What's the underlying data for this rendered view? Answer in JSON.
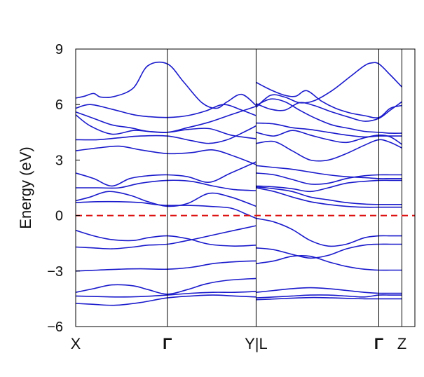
{
  "chart_data": {
    "type": "line",
    "title": "",
    "ylabel": "Energy (eV)",
    "xlabel": "",
    "ylim": [
      -6,
      9
    ],
    "xlim": [
      0,
      4.7
    ],
    "yticks": [
      -6,
      -3,
      0,
      3,
      6,
      9
    ],
    "ytick_labels": [
      "−6",
      "−3",
      "0",
      "3",
      "6",
      "9"
    ],
    "high_symmetry_points": [
      {
        "label": "X",
        "x": 0,
        "bold": false
      },
      {
        "label": "Γ",
        "x": 1.27,
        "bold": true
      },
      {
        "label": "Y|L",
        "x": 2.5,
        "bold": false
      },
      {
        "label": "Γ",
        "x": 4.2,
        "bold": true
      },
      {
        "label": "Z",
        "x": 4.52,
        "bold": false
      }
    ],
    "fermi_level": 0,
    "grid": false,
    "band_color": "#1a1acc",
    "fermi_color": "#dd1111",
    "series": [
      {
        "x": [
          0,
          0.25,
          0.55,
          0.9,
          1.27,
          1.6,
          1.9,
          2.2,
          2.5
        ],
        "values": [
          -4.75,
          -4.8,
          -4.85,
          -4.7,
          -4.45,
          -4.35,
          -4.3,
          -4.35,
          -4.4
        ]
      },
      {
        "x": [
          0,
          0.3,
          0.6,
          0.9,
          1.27,
          1.6,
          1.9,
          2.2,
          2.5
        ],
        "values": [
          -4.35,
          -4.38,
          -4.4,
          -4.38,
          -4.3,
          -4.2,
          -4.15,
          -4.15,
          -4.1
        ]
      },
      {
        "x": [
          0,
          0.25,
          0.5,
          0.8,
          1.0,
          1.27,
          1.55,
          1.8,
          2.1,
          2.5
        ],
        "values": [
          -4.15,
          -3.95,
          -3.75,
          -3.8,
          -4.0,
          -4.25,
          -4.0,
          -3.7,
          -3.5,
          -3.4
        ]
      },
      {
        "x": [
          0,
          0.3,
          0.6,
          0.9,
          1.27,
          1.6,
          1.9,
          2.2,
          2.5
        ],
        "values": [
          -3.0,
          -2.95,
          -2.9,
          -2.88,
          -2.9,
          -2.8,
          -2.6,
          -2.5,
          -2.45
        ]
      },
      {
        "x": [
          0,
          0.25,
          0.5,
          0.8,
          1.0,
          1.27,
          1.55,
          1.85,
          2.2,
          2.5
        ],
        "values": [
          -1.7,
          -1.75,
          -1.8,
          -1.7,
          -1.6,
          -1.55,
          -1.35,
          -1.1,
          -0.8,
          -0.55
        ]
      },
      {
        "x": [
          0,
          0.25,
          0.5,
          0.8,
          1.0,
          1.27,
          1.55,
          1.85,
          2.2,
          2.5
        ],
        "values": [
          -0.8,
          -1.1,
          -1.3,
          -1.35,
          -1.2,
          -1.1,
          -1.25,
          -1.55,
          -1.65,
          -1.6
        ]
      },
      {
        "x": [
          0,
          0.3,
          0.6,
          0.9,
          1.1,
          1.27,
          1.55,
          1.85,
          2.15,
          2.35,
          2.5
        ],
        "values": [
          0.7,
          0.75,
          0.75,
          0.7,
          0.6,
          0.55,
          0.55,
          0.5,
          0.4,
          0.1,
          -0.15
        ]
      },
      {
        "x": [
          0,
          0.2,
          0.45,
          0.75,
          1.0,
          1.27,
          1.55,
          1.85,
          2.15,
          2.5
        ],
        "values": [
          0.8,
          1.0,
          1.3,
          1.1,
          0.75,
          0.5,
          0.65,
          1.2,
          1.0,
          0.5
        ]
      },
      {
        "x": [
          0,
          0.3,
          0.6,
          0.9,
          1.27,
          1.6,
          1.9,
          2.2,
          2.5
        ],
        "values": [
          1.5,
          1.5,
          1.5,
          1.75,
          1.9,
          1.85,
          1.6,
          1.4,
          1.35
        ]
      },
      {
        "x": [
          0,
          0.25,
          0.5,
          0.75,
          1.0,
          1.27,
          1.55,
          1.85,
          2.15,
          2.5
        ],
        "values": [
          2.3,
          2.0,
          1.6,
          2.0,
          2.15,
          2.2,
          2.1,
          1.8,
          2.3,
          2.9
        ]
      },
      {
        "x": [
          0,
          0.3,
          0.6,
          0.9,
          1.27,
          1.6,
          1.9,
          2.2,
          2.5
        ],
        "values": [
          3.5,
          3.65,
          3.75,
          3.55,
          3.35,
          3.4,
          3.55,
          3.2,
          2.75
        ]
      },
      {
        "x": [
          0,
          0.3,
          0.6,
          0.9,
          1.27,
          1.6,
          1.85,
          2.1,
          2.35,
          2.5
        ],
        "values": [
          4.1,
          4.1,
          4.2,
          4.3,
          4.3,
          4.05,
          3.9,
          4.1,
          4.55,
          4.85
        ]
      },
      {
        "x": [
          0,
          0.2,
          0.5,
          0.8,
          1.0,
          1.27,
          1.55,
          1.85,
          2.15,
          2.5
        ],
        "values": [
          5.45,
          4.85,
          4.4,
          4.6,
          4.55,
          4.5,
          4.65,
          4.7,
          4.35,
          4.15
        ]
      },
      {
        "x": [
          0,
          0.25,
          0.5,
          0.75,
          1.0,
          1.27,
          1.55,
          1.85,
          2.15,
          2.5
        ],
        "values": [
          5.6,
          5.25,
          4.9,
          4.75,
          4.55,
          4.5,
          4.75,
          5.05,
          5.45,
          5.9
        ]
      },
      {
        "x": [
          0,
          0.2,
          0.5,
          0.8,
          1.0,
          1.27,
          1.55,
          1.8,
          2.05,
          2.3,
          2.5
        ],
        "values": [
          5.8,
          6.0,
          5.75,
          5.45,
          5.35,
          5.3,
          5.4,
          5.65,
          6.0,
          5.7,
          5.4
        ]
      },
      {
        "x": [
          0,
          0.12,
          0.25,
          0.35,
          0.55,
          0.8,
          1.0,
          1.27,
          1.5,
          1.75,
          1.95,
          2.1,
          2.3,
          2.5
        ],
        "values": [
          6.35,
          6.45,
          6.6,
          6.4,
          6.45,
          6.9,
          8.1,
          8.2,
          7.2,
          6.1,
          5.8,
          6.15,
          6.55,
          5.95
        ]
      },
      {
        "x": [
          2.5,
          2.7,
          2.9,
          3.1,
          3.3,
          3.55,
          3.8,
          4.0,
          4.2,
          4.36,
          4.52
        ],
        "values": [
          -4.55,
          -4.52,
          -4.48,
          -4.45,
          -4.43,
          -4.45,
          -4.48,
          -4.5,
          -4.5,
          -4.5,
          -4.5
        ]
      },
      {
        "x": [
          2.5,
          2.75,
          3.0,
          3.25,
          3.5,
          3.75,
          4.0,
          4.2,
          4.36,
          4.52
        ],
        "values": [
          -4.45,
          -4.4,
          -4.35,
          -4.3,
          -4.3,
          -4.35,
          -4.4,
          -4.3,
          -4.3,
          -4.3
        ]
      },
      {
        "x": [
          2.5,
          2.75,
          3.0,
          3.25,
          3.5,
          3.75,
          4.0,
          4.2,
          4.36,
          4.52
        ],
        "values": [
          -4.15,
          -4.05,
          -3.95,
          -3.9,
          -3.95,
          -4.05,
          -4.15,
          -4.2,
          -4.2,
          -4.2
        ]
      },
      {
        "x": [
          2.5,
          2.75,
          3.0,
          3.25,
          3.5,
          3.75,
          4.0,
          4.2,
          4.36,
          4.52
        ],
        "values": [
          -2.6,
          -2.45,
          -2.2,
          -2.2,
          -2.5,
          -2.75,
          -2.9,
          -2.95,
          -2.95,
          -2.95
        ]
      },
      {
        "x": [
          2.5,
          2.75,
          3.0,
          3.25,
          3.5,
          3.75,
          4.0,
          4.2,
          4.36,
          4.52
        ],
        "values": [
          -1.75,
          -1.85,
          -2.1,
          -2.3,
          -2.15,
          -1.8,
          -1.6,
          -1.55,
          -1.55,
          -1.55
        ]
      },
      {
        "x": [
          2.5,
          2.75,
          3.0,
          3.25,
          3.5,
          3.75,
          4.0,
          4.2,
          4.36,
          4.52
        ],
        "values": [
          -0.15,
          -0.35,
          -0.75,
          -1.35,
          -1.65,
          -1.55,
          -1.2,
          -1.1,
          -1.1,
          -1.1
        ]
      },
      {
        "x": [
          2.5,
          2.75,
          3.0,
          3.25,
          3.5,
          3.75,
          4.0,
          4.2,
          4.36,
          4.52
        ],
        "values": [
          1.5,
          1.3,
          1.0,
          0.75,
          0.6,
          0.5,
          0.45,
          0.45,
          0.45,
          0.45
        ]
      },
      {
        "x": [
          2.5,
          2.75,
          3.0,
          3.25,
          3.5,
          3.75,
          4.0,
          4.2,
          4.36,
          4.52
        ],
        "values": [
          1.55,
          1.45,
          1.3,
          1.0,
          0.85,
          0.7,
          0.62,
          0.6,
          0.6,
          0.6
        ]
      },
      {
        "x": [
          2.5,
          2.75,
          3.0,
          3.25,
          3.5,
          3.75,
          4.0,
          4.2,
          4.36,
          4.52
        ],
        "values": [
          1.6,
          1.55,
          1.45,
          1.3,
          1.5,
          1.75,
          1.85,
          1.9,
          1.9,
          1.9
        ]
      },
      {
        "x": [
          2.5,
          2.75,
          3.0,
          3.25,
          3.5,
          3.75,
          4.0,
          4.2,
          4.36,
          4.52
        ],
        "values": [
          2.3,
          2.2,
          1.95,
          1.7,
          1.75,
          2.0,
          2.15,
          2.2,
          2.2,
          2.2
        ]
      },
      {
        "x": [
          2.5,
          2.75,
          3.0,
          3.25,
          3.5,
          3.75,
          4.0,
          4.2,
          4.36,
          4.52
        ],
        "values": [
          2.7,
          2.6,
          2.5,
          2.35,
          2.2,
          2.1,
          2.05,
          2.0,
          2.0,
          2.0
        ]
      },
      {
        "x": [
          2.5,
          2.75,
          3.0,
          3.25,
          3.5,
          3.75,
          4.0,
          4.2,
          4.36,
          4.52
        ],
        "values": [
          3.9,
          4.0,
          3.5,
          3.0,
          3.0,
          3.35,
          3.8,
          4.1,
          3.95,
          3.65
        ]
      },
      {
        "x": [
          2.5,
          2.75,
          3.0,
          3.25,
          3.5,
          3.75,
          4.0,
          4.2,
          4.36,
          4.52
        ],
        "values": [
          4.5,
          4.3,
          4.6,
          4.35,
          4.1,
          3.95,
          4.2,
          4.35,
          4.25,
          3.85
        ]
      },
      {
        "x": [
          2.5,
          2.75,
          3.0,
          3.25,
          3.5,
          3.75,
          4.0,
          4.2,
          4.36,
          4.52
        ],
        "values": [
          5.0,
          4.95,
          4.75,
          4.65,
          4.5,
          4.35,
          4.25,
          4.3,
          4.3,
          4.3
        ]
      },
      {
        "x": [
          2.5,
          2.7,
          2.9,
          3.1,
          3.3,
          3.55,
          3.8,
          4.0,
          4.2,
          4.36,
          4.52
        ],
        "values": [
          5.95,
          6.3,
          6.15,
          5.7,
          5.3,
          4.9,
          4.7,
          4.55,
          4.5,
          4.45,
          4.45
        ]
      },
      {
        "x": [
          2.5,
          2.7,
          2.9,
          3.1,
          3.3,
          3.55,
          3.8,
          4.0,
          4.2,
          4.36,
          4.52
        ],
        "values": [
          6.05,
          5.75,
          5.7,
          6.1,
          5.95,
          5.6,
          5.3,
          5.1,
          5.25,
          5.7,
          6.15
        ]
      },
      {
        "x": [
          2.5,
          2.7,
          2.9,
          3.05,
          3.2,
          3.4,
          3.6,
          3.8,
          4.0,
          4.2,
          4.36,
          4.52
        ],
        "values": [
          7.2,
          6.8,
          6.5,
          6.45,
          6.75,
          6.2,
          5.8,
          5.55,
          5.4,
          5.3,
          5.8,
          5.95
        ]
      },
      {
        "x": [
          2.5,
          2.7,
          2.9,
          3.1,
          3.3,
          3.55,
          3.8,
          4.0,
          4.1,
          4.2,
          4.36,
          4.52
        ],
        "values": [
          5.85,
          6.5,
          6.4,
          6.1,
          6.2,
          6.75,
          7.5,
          8.1,
          8.25,
          8.2,
          7.6,
          6.95
        ]
      }
    ]
  }
}
